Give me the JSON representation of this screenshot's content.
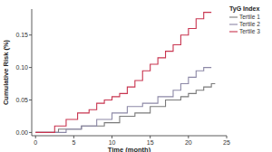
{
  "chart_data": {
    "type": "step",
    "x_label": "Time (month)",
    "y_label": "Cumulative Risk (%)",
    "legend_title": "TyG Index",
    "legend": "top-right",
    "grid": false,
    "xlim": [
      -0.5,
      25
    ],
    "xticks": [
      0,
      5,
      10,
      15,
      20,
      25
    ],
    "ylim": [
      -0.005,
      0.19
    ],
    "yticks": [
      {
        "value": 0,
        "label": "0.00"
      },
      {
        "value": 0.05,
        "label": "0.05"
      },
      {
        "value": 0.1,
        "label": "0.10"
      },
      {
        "value": 0.15,
        "label": "0.15"
      }
    ],
    "series": [
      {
        "name": "Tertile 1",
        "color": "#7a7a7a",
        "x": [
          0,
          3,
          6,
          9,
          11,
          13,
          15,
          17,
          19,
          20,
          21,
          22,
          23,
          23.5
        ],
        "values": [
          0,
          0.005,
          0.01,
          0.015,
          0.025,
          0.03,
          0.04,
          0.05,
          0.055,
          0.06,
          0.065,
          0.07,
          0.075,
          0.075
        ]
      },
      {
        "name": "Tertile 2",
        "color": "#8c88a6",
        "x": [
          0,
          4,
          6,
          8,
          10,
          12,
          14,
          16,
          18,
          19,
          20,
          21,
          22,
          23
        ],
        "values": [
          0,
          0.005,
          0.01,
          0.02,
          0.03,
          0.04,
          0.045,
          0.055,
          0.065,
          0.075,
          0.085,
          0.095,
          0.1,
          0.1
        ]
      },
      {
        "name": "Tertile 3",
        "color": "#c8344f",
        "x": [
          0,
          2.5,
          4,
          5.5,
          7,
          8,
          9,
          10,
          11,
          12,
          13,
          14,
          15,
          16,
          17,
          18,
          19,
          20,
          21,
          22,
          23
        ],
        "values": [
          0,
          0.01,
          0.02,
          0.03,
          0.035,
          0.045,
          0.05,
          0.055,
          0.06,
          0.07,
          0.08,
          0.095,
          0.105,
          0.115,
          0.125,
          0.135,
          0.15,
          0.16,
          0.175,
          0.185,
          0.185
        ]
      }
    ]
  }
}
